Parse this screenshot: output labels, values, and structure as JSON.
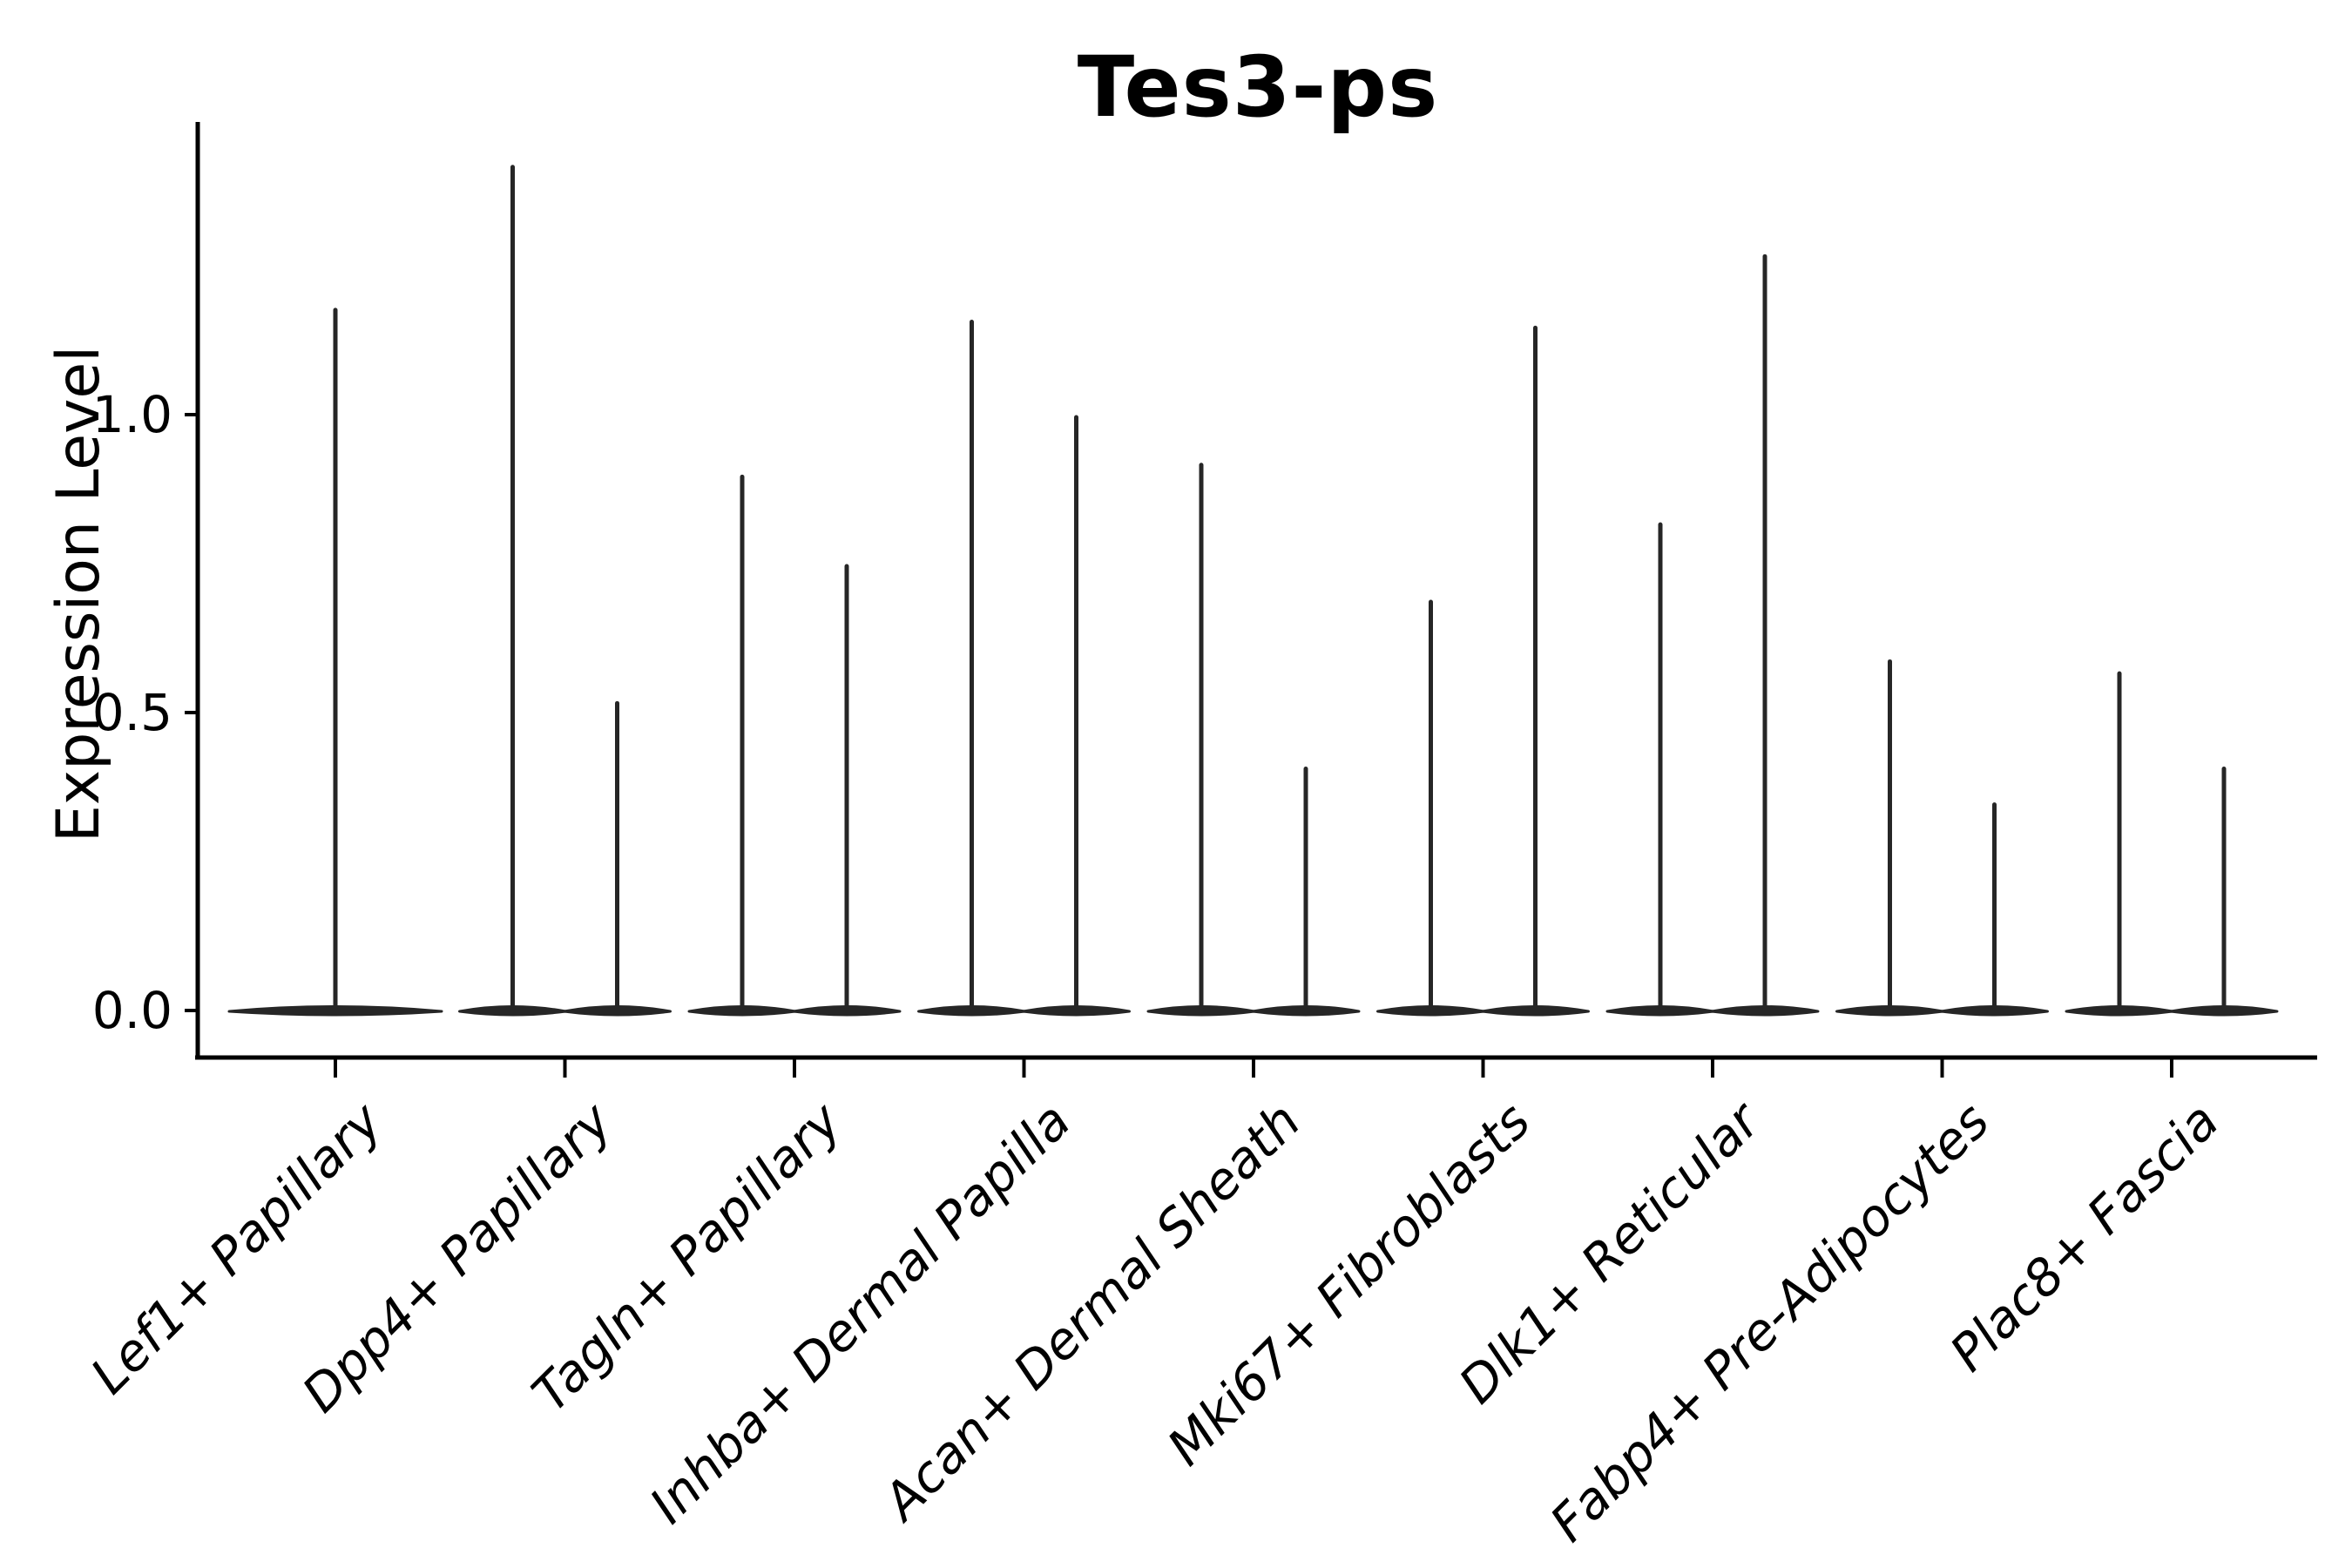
{
  "colors": {
    "violin": "#262626",
    "axis": "#000000",
    "background": "#ffffff"
  },
  "chart_data": {
    "type": "violin",
    "title": "Tes3-ps",
    "xlabel": "",
    "ylabel": "Expression Level",
    "grid": false,
    "legend": "none",
    "ylim": [
      -0.08,
      1.49
    ],
    "yticks": [
      {
        "label": "0.0",
        "value": 0.0
      },
      {
        "label": "0.5",
        "value": 0.5
      },
      {
        "label": "1.0",
        "value": 1.0
      }
    ],
    "xtick_rotation": 45,
    "categories": [
      "Lef1+ Papillary",
      "Dpp4+ Papillary",
      "Tagln+ Papillary",
      "Inhba+ Dermal Papilla",
      "Acan+ Dermal Sheath",
      "Mki67+ Fibroblasts",
      "Dlk1+ Reticular",
      "Fabp4+ Pre-Adipocytes",
      "Plac8+ Fascia"
    ],
    "series": [
      {
        "category": "Lef1+ Papillary",
        "violins": [
          {
            "position": "center",
            "max": 1.18
          }
        ]
      },
      {
        "category": "Dpp4+ Papillary",
        "violins": [
          {
            "position": "left",
            "max": 1.42
          },
          {
            "position": "right",
            "max": 0.52
          }
        ]
      },
      {
        "category": "Tagln+ Papillary",
        "violins": [
          {
            "position": "left",
            "max": 0.9
          },
          {
            "position": "right",
            "max": 0.75
          }
        ]
      },
      {
        "category": "Inhba+ Dermal Papilla",
        "violins": [
          {
            "position": "left",
            "max": 1.16
          },
          {
            "position": "right",
            "max": 1.0
          }
        ]
      },
      {
        "category": "Acan+ Dermal Sheath",
        "violins": [
          {
            "position": "left",
            "max": 0.92
          },
          {
            "position": "right",
            "max": 0.41
          }
        ]
      },
      {
        "category": "Mki67+ Fibroblasts",
        "violins": [
          {
            "position": "left",
            "max": 0.69
          },
          {
            "position": "right",
            "max": 1.15
          }
        ]
      },
      {
        "category": "Dlk1+ Reticular",
        "violins": [
          {
            "position": "left",
            "max": 0.82
          },
          {
            "position": "right",
            "max": 1.27
          }
        ]
      },
      {
        "category": "Fabp4+ Pre-Adipocytes",
        "violins": [
          {
            "position": "left",
            "max": 0.59
          },
          {
            "position": "right",
            "max": 0.35
          }
        ]
      },
      {
        "category": "Plac8+ Fascia",
        "violins": [
          {
            "position": "left",
            "max": 0.57
          },
          {
            "position": "right",
            "max": 0.41
          }
        ]
      }
    ],
    "description": "Each cell-type category shows very thin violin shapes: a wide flat base at expression 0 with a narrow spike rising to the maximum expression value."
  }
}
